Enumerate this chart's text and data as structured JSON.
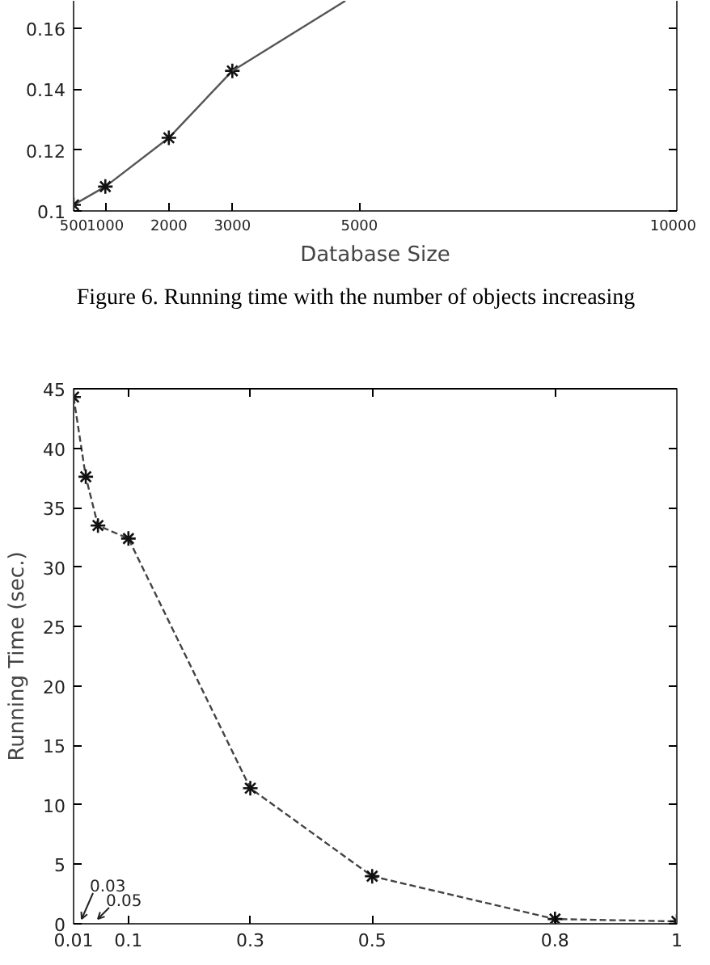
{
  "chart_data": [
    {
      "type": "line",
      "xlabel": "Database Size",
      "x": [
        500,
        1000,
        2000,
        3000
      ],
      "series": [
        {
          "color": "#555555",
          "values": [
            0.102,
            0.108,
            0.124,
            0.146
          ],
          "marker": "cross"
        },
        {
          "color": "#555555",
          "x": [
            3000,
            4780
          ],
          "values": [
            0.146,
            0.169
          ],
          "marker": "none"
        }
      ],
      "xlim": [
        500,
        10000
      ],
      "ylim": [
        0.1,
        0.169
      ],
      "xticks": [
        500,
        1000,
        2000,
        3000,
        5000,
        10000
      ],
      "yticks": [
        0.1,
        0.12,
        0.14,
        0.16
      ],
      "grid": false,
      "line_style": "solid",
      "annotations": [
        "Figure 6. Running time with the number of objects increasing"
      ]
    },
    {
      "type": "line",
      "ylabel": "Running Time (sec.)",
      "x": [
        0.01,
        0.03,
        0.05,
        0.1,
        0.3,
        0.5,
        0.8,
        1
      ],
      "series": [
        {
          "color": "#444444",
          "values": [
            44.3,
            37.6,
            33.5,
            32.4,
            11.4,
            4.0,
            0.4,
            0.2
          ],
          "marker": "cross"
        }
      ],
      "xlim": [
        0.01,
        1
      ],
      "ylim": [
        0,
        45
      ],
      "xticks": [
        0.01,
        0.1,
        0.3,
        0.5,
        0.8,
        1
      ],
      "yticks": [
        0,
        5,
        10,
        15,
        20,
        25,
        30,
        35,
        40,
        45
      ],
      "grid": false,
      "line_style": "dashed",
      "annotations": [
        "0.03",
        "0.05"
      ]
    }
  ]
}
